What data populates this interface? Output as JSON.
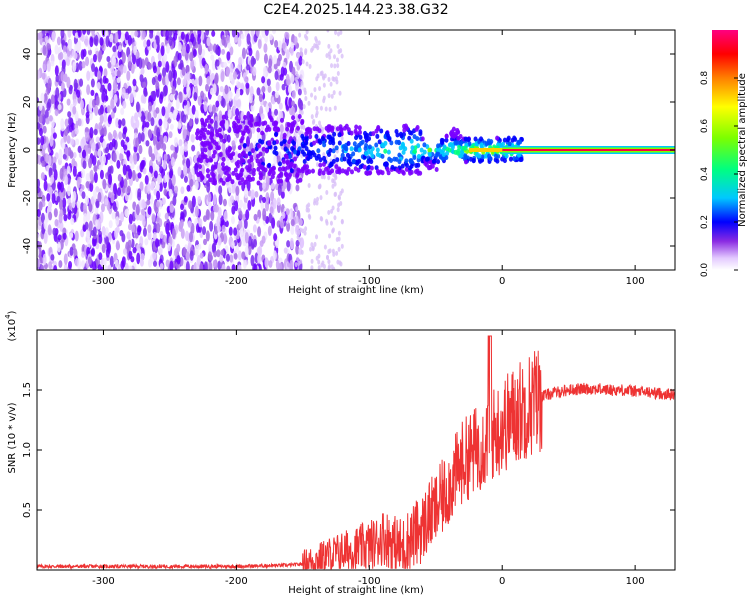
{
  "title": "C2E4.2025.144.23.38.G32",
  "chart_data": [
    {
      "type": "heatmap",
      "xlabel": "Height of straight line (km)",
      "ylabel": "Frequency (Hz)",
      "xlim": [
        -350,
        130
      ],
      "ylim": [
        -50,
        50
      ],
      "x_ticks": [
        -300,
        -200,
        -100,
        0,
        100
      ],
      "y_ticks": [
        -40,
        -20,
        0,
        20,
        40
      ],
      "colorbar": {
        "label": "Normalized spectral amplitude",
        "range": [
          0,
          1
        ],
        "ticks": [
          "0.0",
          "0.2",
          "0.4",
          "0.6",
          "0.8"
        ],
        "colors": [
          "#ffffff",
          "#c9a8f5",
          "#7a00ff",
          "#0000ff",
          "#00c8ff",
          "#00ff80",
          "#7cff00",
          "#ffff00",
          "#ff8000",
          "#ff0000",
          "#ff0080"
        ]
      },
      "regions": [
        {
          "x_from": -350,
          "x_to": -150,
          "description_level": 0.15,
          "band": "broadband noise"
        },
        {
          "x_from": -150,
          "x_to": 15,
          "description_level": 0.45,
          "band": "signal near 0 Hz"
        },
        {
          "x_from": 0,
          "x_to": 130,
          "description_level": 0.95,
          "band": "carrier line at 0 Hz"
        }
      ]
    },
    {
      "type": "line",
      "xlabel": "Height of straight line (km)",
      "ylabel": "SNR (10 * v/v)",
      "y_multiplier": "(x10",
      "y_multiplier_exp": "4",
      "xlim": [
        -350,
        130
      ],
      "ylim": [
        0,
        2.0
      ],
      "x_ticks": [
        -300,
        -200,
        -100,
        0,
        100
      ],
      "y_ticks": [
        0.5,
        1.0,
        1.5
      ],
      "y_tick_labels": [
        "0.5",
        "1.0",
        "1.5"
      ],
      "series": [
        {
          "color": "#ee3333",
          "x": [
            -350,
            -300,
            -250,
            -200,
            -180,
            -160,
            -150,
            -140,
            -130,
            -120,
            -110,
            -100,
            -95,
            -90,
            -85,
            -80,
            -75,
            -70,
            -65,
            -60,
            -55,
            -50,
            -45,
            -40,
            -35,
            -30,
            -25,
            -20,
            -15,
            -10,
            -5,
            0,
            5,
            10,
            20,
            30,
            40,
            50,
            60,
            70,
            80,
            90,
            100,
            110,
            120,
            130
          ],
          "y": [
            0.03,
            0.03,
            0.03,
            0.03,
            0.035,
            0.04,
            0.05,
            0.08,
            0.12,
            0.15,
            0.17,
            0.2,
            0.22,
            0.28,
            0.25,
            0.2,
            0.18,
            0.25,
            0.3,
            0.35,
            0.45,
            0.5,
            0.6,
            0.7,
            0.8,
            0.9,
            0.95,
            1.0,
            1.05,
            1.1,
            1.15,
            1.2,
            1.25,
            1.3,
            1.38,
            1.45,
            1.48,
            1.5,
            1.51,
            1.51,
            1.5,
            1.5,
            1.49,
            1.48,
            1.47,
            1.46
          ]
        }
      ]
    }
  ]
}
